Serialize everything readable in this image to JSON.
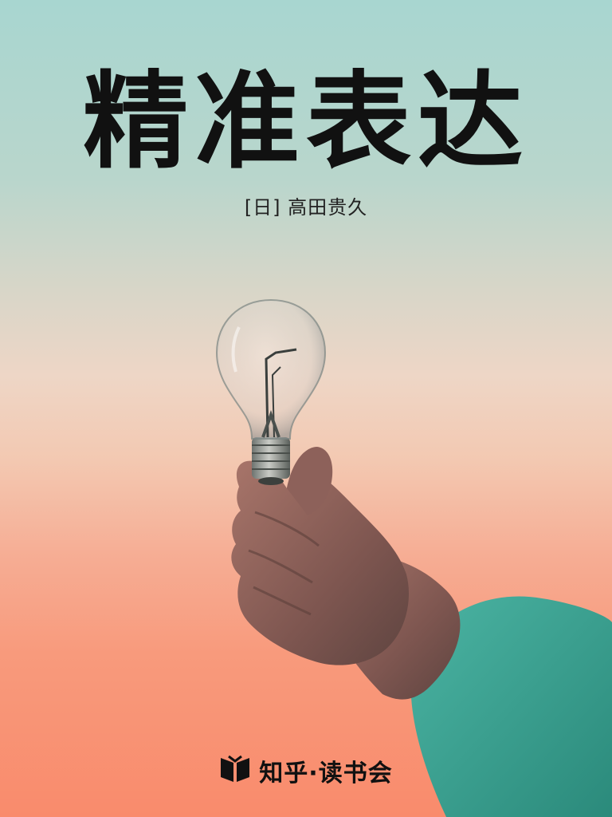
{
  "cover": {
    "title": "精准表达",
    "author": "[日] 高田贵久",
    "publisher": "知乎·读书会"
  },
  "colors": {
    "sky_top": "#a8d6d0",
    "sky_bottom": "#f98b6c",
    "title_text": "#111111",
    "sleeve": "#3aa595"
  },
  "icons": {
    "publisher_logo": "open-book-icon"
  }
}
